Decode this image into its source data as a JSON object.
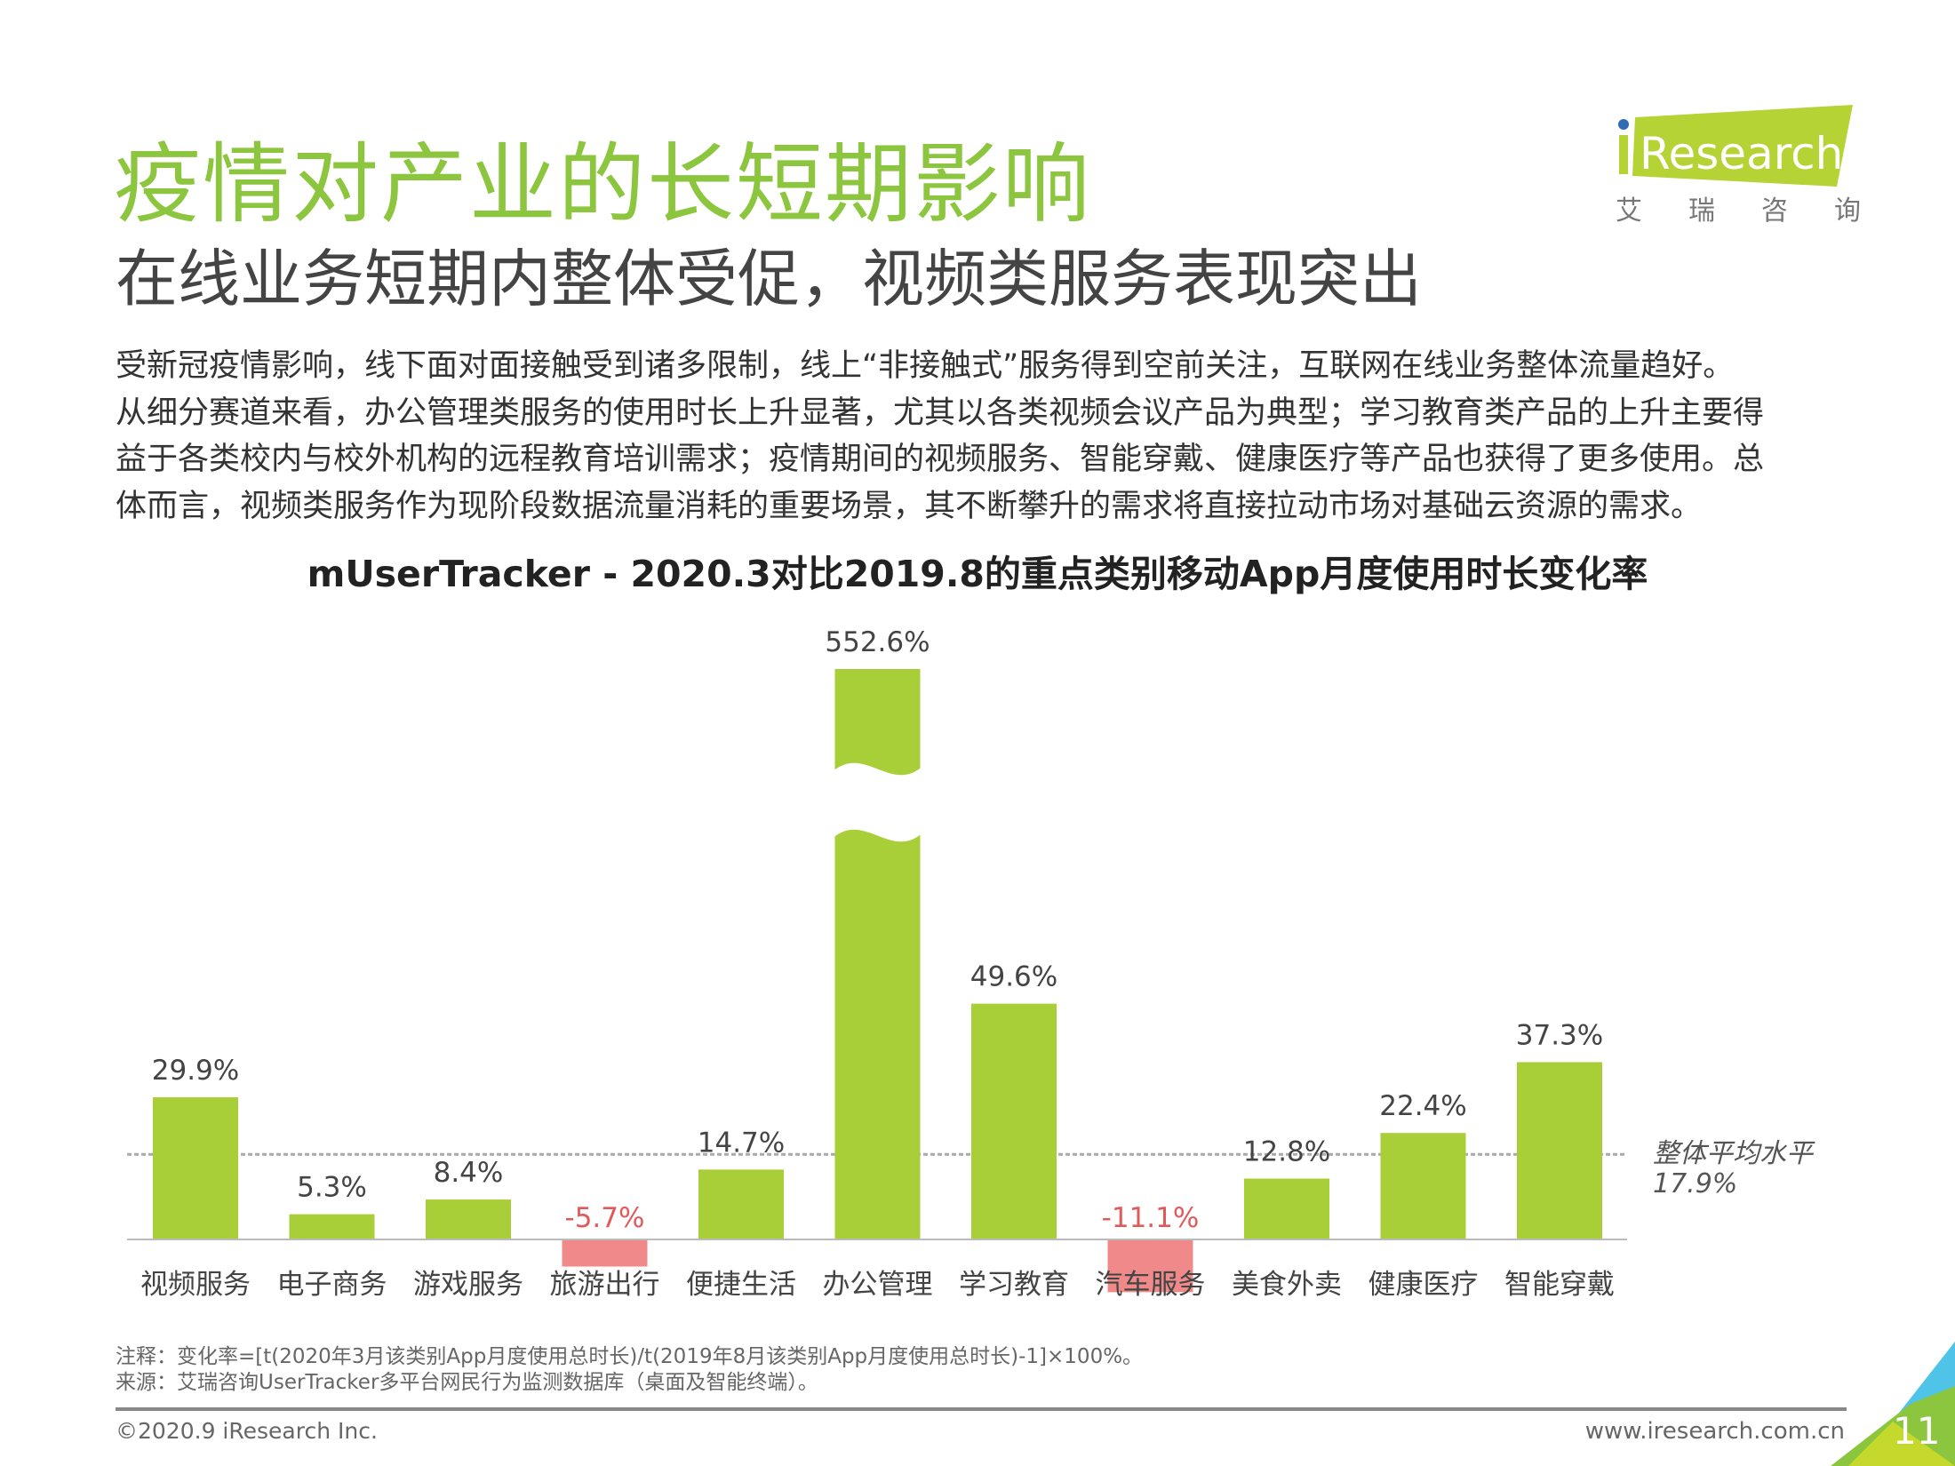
{
  "header": {
    "title": "疫情对产业的长短期影响",
    "subtitle": "在线业务短期内整体受促，视频类服务表现突出"
  },
  "logo": {
    "text": "iResearch",
    "cn": [
      "艾",
      "瑞",
      "咨",
      "询"
    ]
  },
  "body": [
    "受新冠疫情影响，线下面对面接触受到诸多限制，线上“非接触式”服务得到空前关注，互联网在线业务整体流量趋好。",
    "从细分赛道来看，办公管理类服务的使用时长上升显著，尤其以各类视频会议产品为典型；学习教育类产品的上升主要得",
    "益于各类校内与校外机构的远程教育培训需求；疫情期间的视频服务、智能穿戴、健康医疗等产品也获得了更多使用。总",
    "体而言，视频类服务作为现阶段数据流量消耗的重要场景，其不断攀升的需求将直接拉动市场对基础云资源的需求。"
  ],
  "chart_data": {
    "type": "bar",
    "title": "mUserTracker - 2020.3对比2019.8的重点类别移动App月度使用时长变化率",
    "categories": [
      "视频服务",
      "电子商务",
      "游戏服务",
      "旅游出行",
      "便捷生活",
      "办公管理",
      "学习教育",
      "汽车服务",
      "美食外卖",
      "健康医疗",
      "智能穿戴"
    ],
    "values": [
      29.9,
      5.3,
      8.4,
      -5.7,
      14.7,
      552.6,
      49.6,
      -11.1,
      12.8,
      22.4,
      37.3
    ],
    "value_labels": [
      "29.9%",
      "5.3%",
      "8.4%",
      "-5.7%",
      "14.7%",
      "552.6%",
      "49.6%",
      "-11.1%",
      "12.8%",
      "22.4%",
      "37.3%"
    ],
    "broken_axis_category": "办公管理",
    "reference_line": {
      "value": 17.9,
      "label": "整体平均水平",
      "value_label": "17.9%"
    },
    "colors": {
      "positive": "#a9cf38",
      "negative": "#f08a8a",
      "negative_label": "#e05a5a",
      "label": "#444444"
    },
    "xlabel": "",
    "ylabel": "",
    "grid": false
  },
  "notes": [
    "注释：变化率=[t(2020年3月该类别App月度使用总时长)/t(2019年8月该类别App月度使用总时长)-1]×100%。",
    "来源：艾瑞咨询UserTracker多平台网民行为监测数据库（桌面及智能终端）。"
  ],
  "footer": {
    "copyright": "©2020.9 iResearch Inc.",
    "url": "www.iresearch.com.cn",
    "page": "11"
  }
}
